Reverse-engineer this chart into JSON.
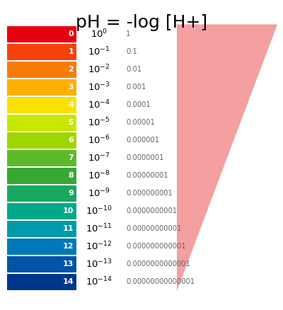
{
  "title": "pH = -log [H+]",
  "title_fontsize": 18,
  "background_color": "#ffffff",
  "bar_colors": [
    "#e8000d",
    "#f4420a",
    "#f97b08",
    "#fdb000",
    "#f9e200",
    "#c8e600",
    "#9ed600",
    "#5cba2a",
    "#37a832",
    "#19a860",
    "#00a88a",
    "#009aab",
    "#0079b8",
    "#0054a6",
    "#00378e"
  ],
  "ph_labels": [
    "0",
    "1",
    "2",
    "3",
    "4",
    "5",
    "6",
    "7",
    "8",
    "9",
    "10",
    "11",
    "12",
    "13",
    "14"
  ],
  "exponent_labels": [
    "0",
    "-1",
    "-2",
    "-3",
    "-4",
    "-5",
    "-6",
    "-7",
    "-8",
    "-9",
    "-10",
    "-11",
    "-12",
    "-13",
    "-14"
  ],
  "decimal_labels": [
    "1",
    "0.1",
    "0.01",
    "0.001",
    "0.0001",
    "0.00001",
    "0.000001",
    "0.0000001",
    "0.00000001",
    "0.000000001",
    "0.0000000001",
    "0.00000000001",
    "0.000000000001",
    "0.0000000000001",
    "0.00000000000001"
  ],
  "triangle_color": "#f4a0a0",
  "triangle_alpha": 1.0
}
